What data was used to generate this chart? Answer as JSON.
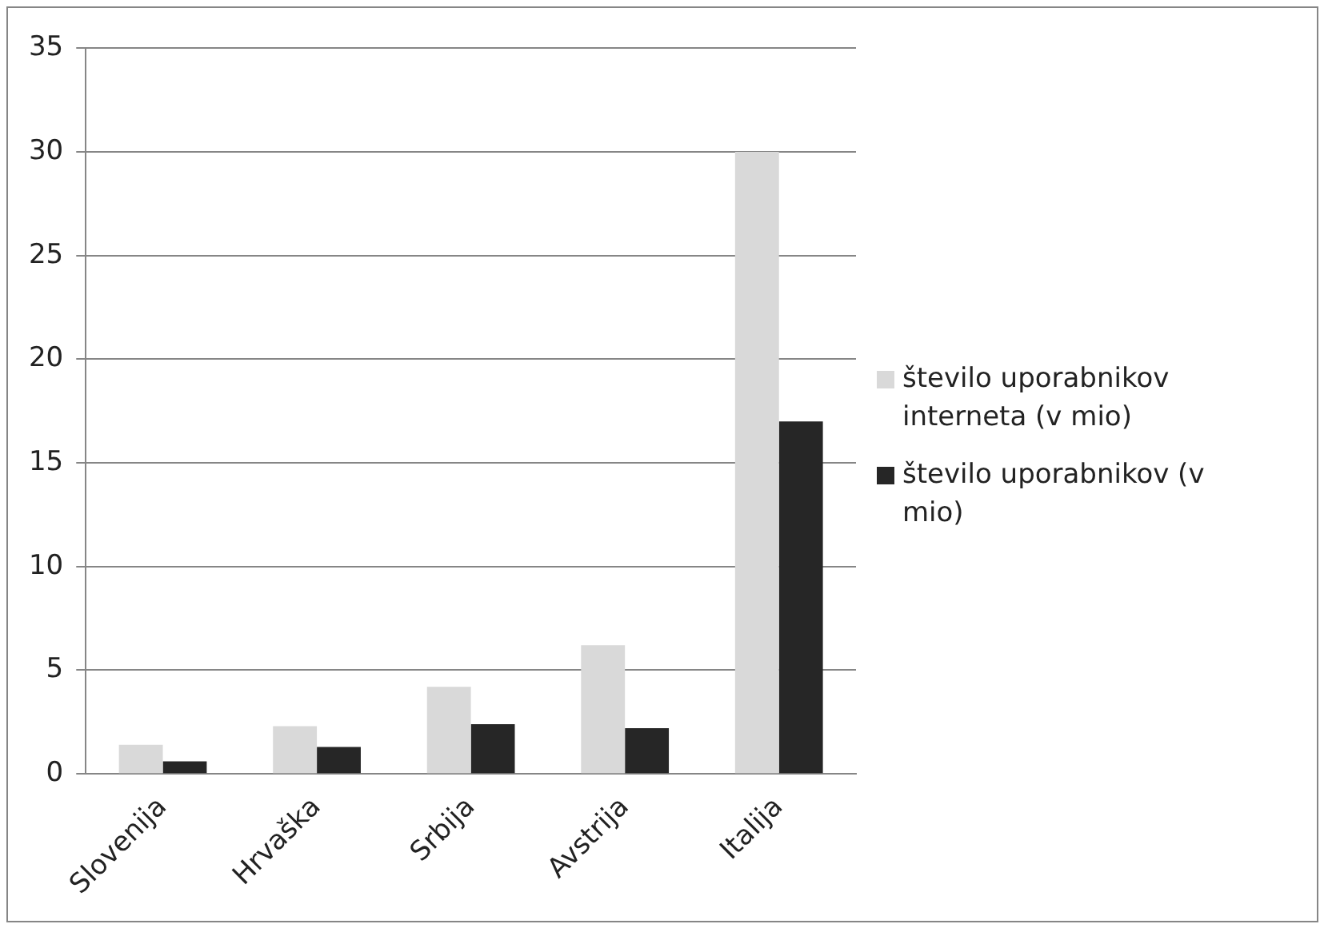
{
  "chart_data": {
    "type": "bar",
    "categories": [
      "Slovenija",
      "Hrvaška",
      "Srbija",
      "Avstrija",
      "Italija"
    ],
    "series": [
      {
        "name": "število uporabnikov interneta (v mio)",
        "color": "#d9d9d9",
        "values": [
          1.4,
          2.3,
          4.2,
          6.2,
          30
        ]
      },
      {
        "name": "število uporabnikov (v mio)",
        "color": "#262626",
        "values": [
          0.6,
          1.3,
          2.4,
          2.2,
          17
        ]
      }
    ],
    "ylim": [
      0,
      35
    ],
    "yticks": [
      0,
      5,
      10,
      15,
      20,
      25,
      30,
      35
    ],
    "grid": "y",
    "legend": "right"
  }
}
